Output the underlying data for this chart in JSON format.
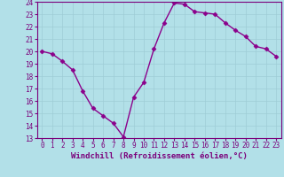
{
  "x": [
    0,
    1,
    2,
    3,
    4,
    5,
    6,
    7,
    8,
    9,
    10,
    11,
    12,
    13,
    14,
    15,
    16,
    17,
    18,
    19,
    20,
    21,
    22,
    23
  ],
  "y": [
    20.0,
    19.8,
    19.2,
    18.5,
    16.8,
    15.4,
    14.8,
    14.2,
    13.1,
    16.3,
    17.5,
    20.2,
    22.3,
    23.9,
    23.8,
    23.2,
    23.1,
    23.0,
    22.3,
    21.7,
    21.2,
    20.4,
    20.2,
    19.6
  ],
  "line_color": "#8B008B",
  "marker": "D",
  "marker_size": 2.5,
  "bg_color": "#b2e0e8",
  "grid_color": "#9ecdd6",
  "xlabel": "Windchill (Refroidissement éolien,°C)",
  "ylabel": "",
  "ylim": [
    13,
    24
  ],
  "xlim": [
    -0.5,
    23.5
  ],
  "yticks": [
    13,
    14,
    15,
    16,
    17,
    18,
    19,
    20,
    21,
    22,
    23,
    24
  ],
  "xticks": [
    0,
    1,
    2,
    3,
    4,
    5,
    6,
    7,
    8,
    9,
    10,
    11,
    12,
    13,
    14,
    15,
    16,
    17,
    18,
    19,
    20,
    21,
    22,
    23
  ],
  "tick_label_color": "#7B007B",
  "xlabel_color": "#7B007B",
  "tick_fontsize": 5.5,
  "xlabel_fontsize": 6.5,
  "spine_color": "#7B007B",
  "line_width": 1.0
}
